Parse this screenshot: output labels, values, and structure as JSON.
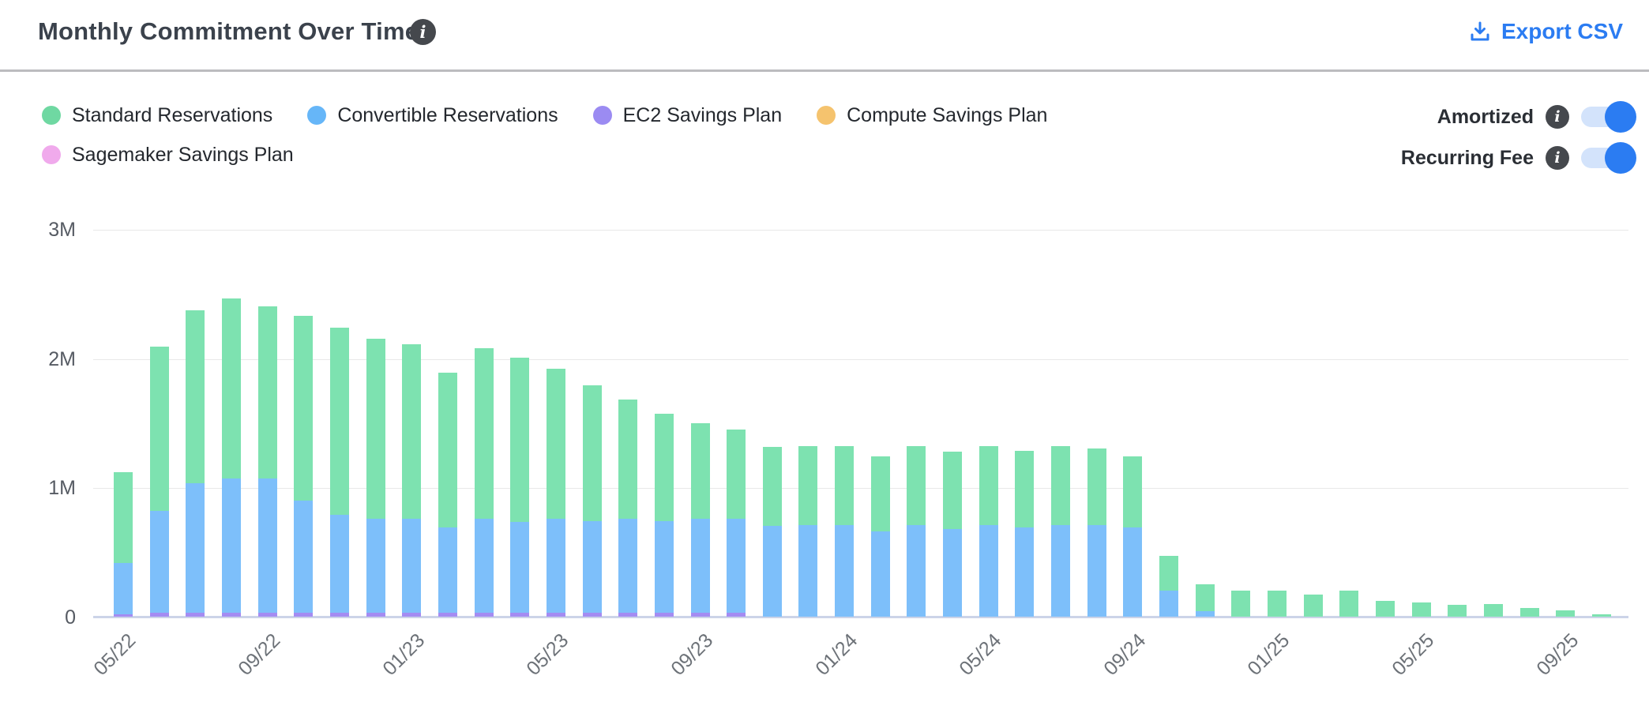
{
  "header": {
    "title": "Monthly Commitment Over Time",
    "export_label": "Export CSV"
  },
  "legend": {
    "items": [
      {
        "name": "standard-reservations",
        "label": "Standard Reservations",
        "color": "#6FD8A2"
      },
      {
        "name": "convertible-reservations",
        "label": "Convertible Reservations",
        "color": "#66B6F8"
      },
      {
        "name": "ec2-savings-plan",
        "label": "EC2 Savings Plan",
        "color": "#9B8BF2"
      },
      {
        "name": "compute-savings-plan",
        "label": "Compute Savings Plan",
        "color": "#F5C36E"
      },
      {
        "name": "sagemaker-savings-plan",
        "label": "Sagemaker Savings Plan",
        "color": "#F0AAEC"
      }
    ]
  },
  "toggles": [
    {
      "name": "amortized",
      "label": "Amortized",
      "state": "on"
    },
    {
      "name": "recurring-fee",
      "label": "Recurring Fee",
      "state": "on"
    }
  ],
  "colors": {
    "accent_blue": "#2b7cf2",
    "toggle_track": "#d3e3fb",
    "bar_standard": "#7DE2B0",
    "bar_convertible": "#7DBFFA",
    "bar_ec2": "#A48CF2",
    "bar_compute": "#F5C36E",
    "bar_sagemaker": "#F0AAEC"
  },
  "chart_data": {
    "type": "bar",
    "stacked": true,
    "title": "Monthly Commitment Over Time",
    "xlabel": "",
    "ylabel": "",
    "unit_millions": "M",
    "ylim": [
      0,
      3
    ],
    "y_ticks": [
      "0",
      "1M",
      "2M",
      "3M"
    ],
    "x_visible_tick_labels": [
      "05/22",
      "09/22",
      "01/23",
      "05/23",
      "09/23",
      "01/24",
      "05/24",
      "09/24",
      "01/25",
      "05/25",
      "09/25"
    ],
    "x_tick_every": 4,
    "grid": "horizontal",
    "legend_position": "top-left",
    "categories": [
      "05/22",
      "06/22",
      "07/22",
      "08/22",
      "09/22",
      "10/22",
      "11/22",
      "12/22",
      "01/23",
      "02/23",
      "03/23",
      "04/23",
      "05/23",
      "06/23",
      "07/23",
      "08/23",
      "09/23",
      "10/23",
      "11/23",
      "12/23",
      "01/24",
      "02/24",
      "03/24",
      "04/24",
      "05/24",
      "06/24",
      "07/24",
      "08/24",
      "09/24",
      "10/24",
      "11/24",
      "12/24",
      "01/25",
      "02/25",
      "03/25",
      "04/25",
      "05/25",
      "06/25",
      "07/25",
      "08/25",
      "09/25",
      "10/25"
    ],
    "series": [
      {
        "name": "EC2 Savings Plan",
        "color": "#A48CF2",
        "values_millions": [
          0.02,
          0.03,
          0.03,
          0.03,
          0.03,
          0.03,
          0.03,
          0.03,
          0.03,
          0.03,
          0.03,
          0.03,
          0.03,
          0.03,
          0.03,
          0.03,
          0.03,
          0.03,
          0,
          0,
          0,
          0,
          0,
          0,
          0,
          0,
          0,
          0,
          0,
          0,
          0,
          0,
          0,
          0,
          0,
          0,
          0,
          0,
          0,
          0,
          0,
          0
        ]
      },
      {
        "name": "Convertible Reservations",
        "color": "#7DBFFA",
        "values_millions": [
          0.4,
          0.79,
          1.0,
          1.04,
          1.04,
          0.87,
          0.76,
          0.73,
          0.73,
          0.66,
          0.73,
          0.7,
          0.73,
          0.71,
          0.73,
          0.71,
          0.73,
          0.73,
          0.7,
          0.71,
          0.71,
          0.66,
          0.71,
          0.68,
          0.71,
          0.69,
          0.71,
          0.71,
          0.69,
          0.2,
          0.04,
          0,
          0,
          0,
          0,
          0,
          0,
          0,
          0,
          0,
          0,
          0
        ]
      },
      {
        "name": "Standard Reservations",
        "color": "#7DE2B0",
        "values_millions": [
          0.7,
          1.27,
          1.34,
          1.39,
          1.33,
          1.43,
          1.45,
          1.39,
          1.35,
          1.2,
          1.32,
          1.27,
          1.16,
          1.05,
          0.92,
          0.83,
          0.74,
          0.69,
          0.61,
          0.61,
          0.61,
          0.58,
          0.61,
          0.6,
          0.61,
          0.59,
          0.61,
          0.59,
          0.55,
          0.27,
          0.21,
          0.2,
          0.2,
          0.17,
          0.2,
          0.12,
          0.11,
          0.09,
          0.1,
          0.07,
          0.05,
          0.02
        ]
      },
      {
        "name": "Compute Savings Plan",
        "color": "#F5C36E",
        "values_millions": [
          0,
          0,
          0,
          0,
          0,
          0,
          0,
          0,
          0,
          0,
          0,
          0,
          0,
          0,
          0,
          0,
          0,
          0,
          0,
          0,
          0,
          0,
          0,
          0,
          0,
          0,
          0,
          0,
          0,
          0,
          0,
          0,
          0,
          0,
          0,
          0,
          0,
          0,
          0,
          0,
          0,
          0
        ]
      },
      {
        "name": "Sagemaker Savings Plan",
        "color": "#F0AAEC",
        "values_millions": [
          0,
          0,
          0,
          0,
          0,
          0,
          0,
          0,
          0,
          0,
          0,
          0,
          0,
          0,
          0,
          0,
          0,
          0,
          0,
          0,
          0,
          0,
          0,
          0,
          0,
          0,
          0,
          0,
          0,
          0,
          0,
          0,
          0,
          0,
          0,
          0,
          0,
          0,
          0,
          0,
          0,
          0
        ]
      }
    ]
  }
}
